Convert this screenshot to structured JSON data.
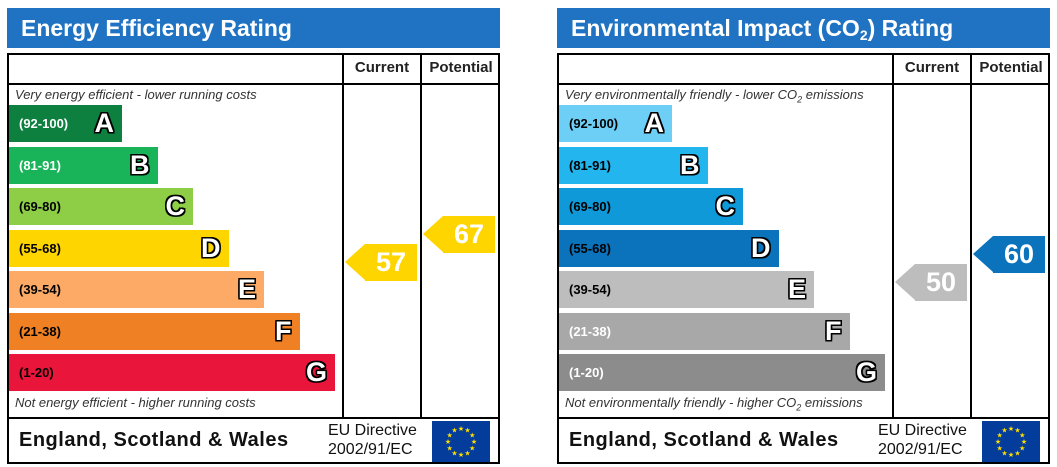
{
  "chart_data": [
    {
      "type": "bar",
      "title": "Energy Efficiency Rating",
      "columns": [
        "Current",
        "Potential"
      ],
      "top_caption": "Very energy efficient - lower running costs",
      "bottom_caption": "Not energy efficient - higher running costs",
      "bands": [
        {
          "range": "(92-100)",
          "letter": "A",
          "color": "#0d8040",
          "text_color": "#ffffff"
        },
        {
          "range": "(81-91)",
          "letter": "B",
          "color": "#19b459",
          "text_color": "#ffffff"
        },
        {
          "range": "(69-80)",
          "letter": "C",
          "color": "#8dce46",
          "text_color": "#000000"
        },
        {
          "range": "(55-68)",
          "letter": "D",
          "color": "#ffd500",
          "text_color": "#000000"
        },
        {
          "range": "(39-54)",
          "letter": "E",
          "color": "#fcaa65",
          "text_color": "#000000"
        },
        {
          "range": "(21-38)",
          "letter": "F",
          "color": "#ef8023",
          "text_color": "#000000"
        },
        {
          "range": "(1-20)",
          "letter": "G",
          "color": "#e9153b",
          "text_color": "#000000"
        }
      ],
      "current": {
        "value": 57,
        "color": "#ffd500"
      },
      "potential": {
        "value": 67,
        "color": "#ffd500"
      },
      "footer": "England, Scotland & Wales",
      "eu_directive_line1": "EU Directive",
      "eu_directive_line2": "2002/91/EC"
    },
    {
      "type": "bar",
      "title": "Environmental Impact (CO",
      "title_sub": "2",
      "title_end": ") Rating",
      "columns": [
        "Current",
        "Potential"
      ],
      "top_caption": "Very environmentally friendly - lower CO",
      "top_caption_sub": "2",
      "top_caption_end": " emissions",
      "bottom_caption": "Not environmentally friendly - higher CO",
      "bottom_caption_sub": "2",
      "bottom_caption_end": " emissions",
      "bands": [
        {
          "range": "(92-100)",
          "letter": "A",
          "color": "#6dcff6",
          "text_color": "#000000"
        },
        {
          "range": "(81-91)",
          "letter": "B",
          "color": "#22b5ee",
          "text_color": "#000000"
        },
        {
          "range": "(69-80)",
          "letter": "C",
          "color": "#0f99d9",
          "text_color": "#000000"
        },
        {
          "range": "(55-68)",
          "letter": "D",
          "color": "#0a73bc",
          "text_color": "#000000"
        },
        {
          "range": "(39-54)",
          "letter": "E",
          "color": "#bdbdbd",
          "text_color": "#000000"
        },
        {
          "range": "(21-38)",
          "letter": "F",
          "color": "#a8a8a8",
          "text_color": "#ffffff"
        },
        {
          "range": "(1-20)",
          "letter": "G",
          "color": "#8c8c8c",
          "text_color": "#ffffff"
        }
      ],
      "current": {
        "value": 50,
        "color": "#bdbdbd"
      },
      "potential": {
        "value": 60,
        "color": "#0a73bc"
      },
      "footer": "England, Scotland & Wales",
      "eu_directive_line1": "EU Directive",
      "eu_directive_line2": "2002/91/EC"
    }
  ]
}
